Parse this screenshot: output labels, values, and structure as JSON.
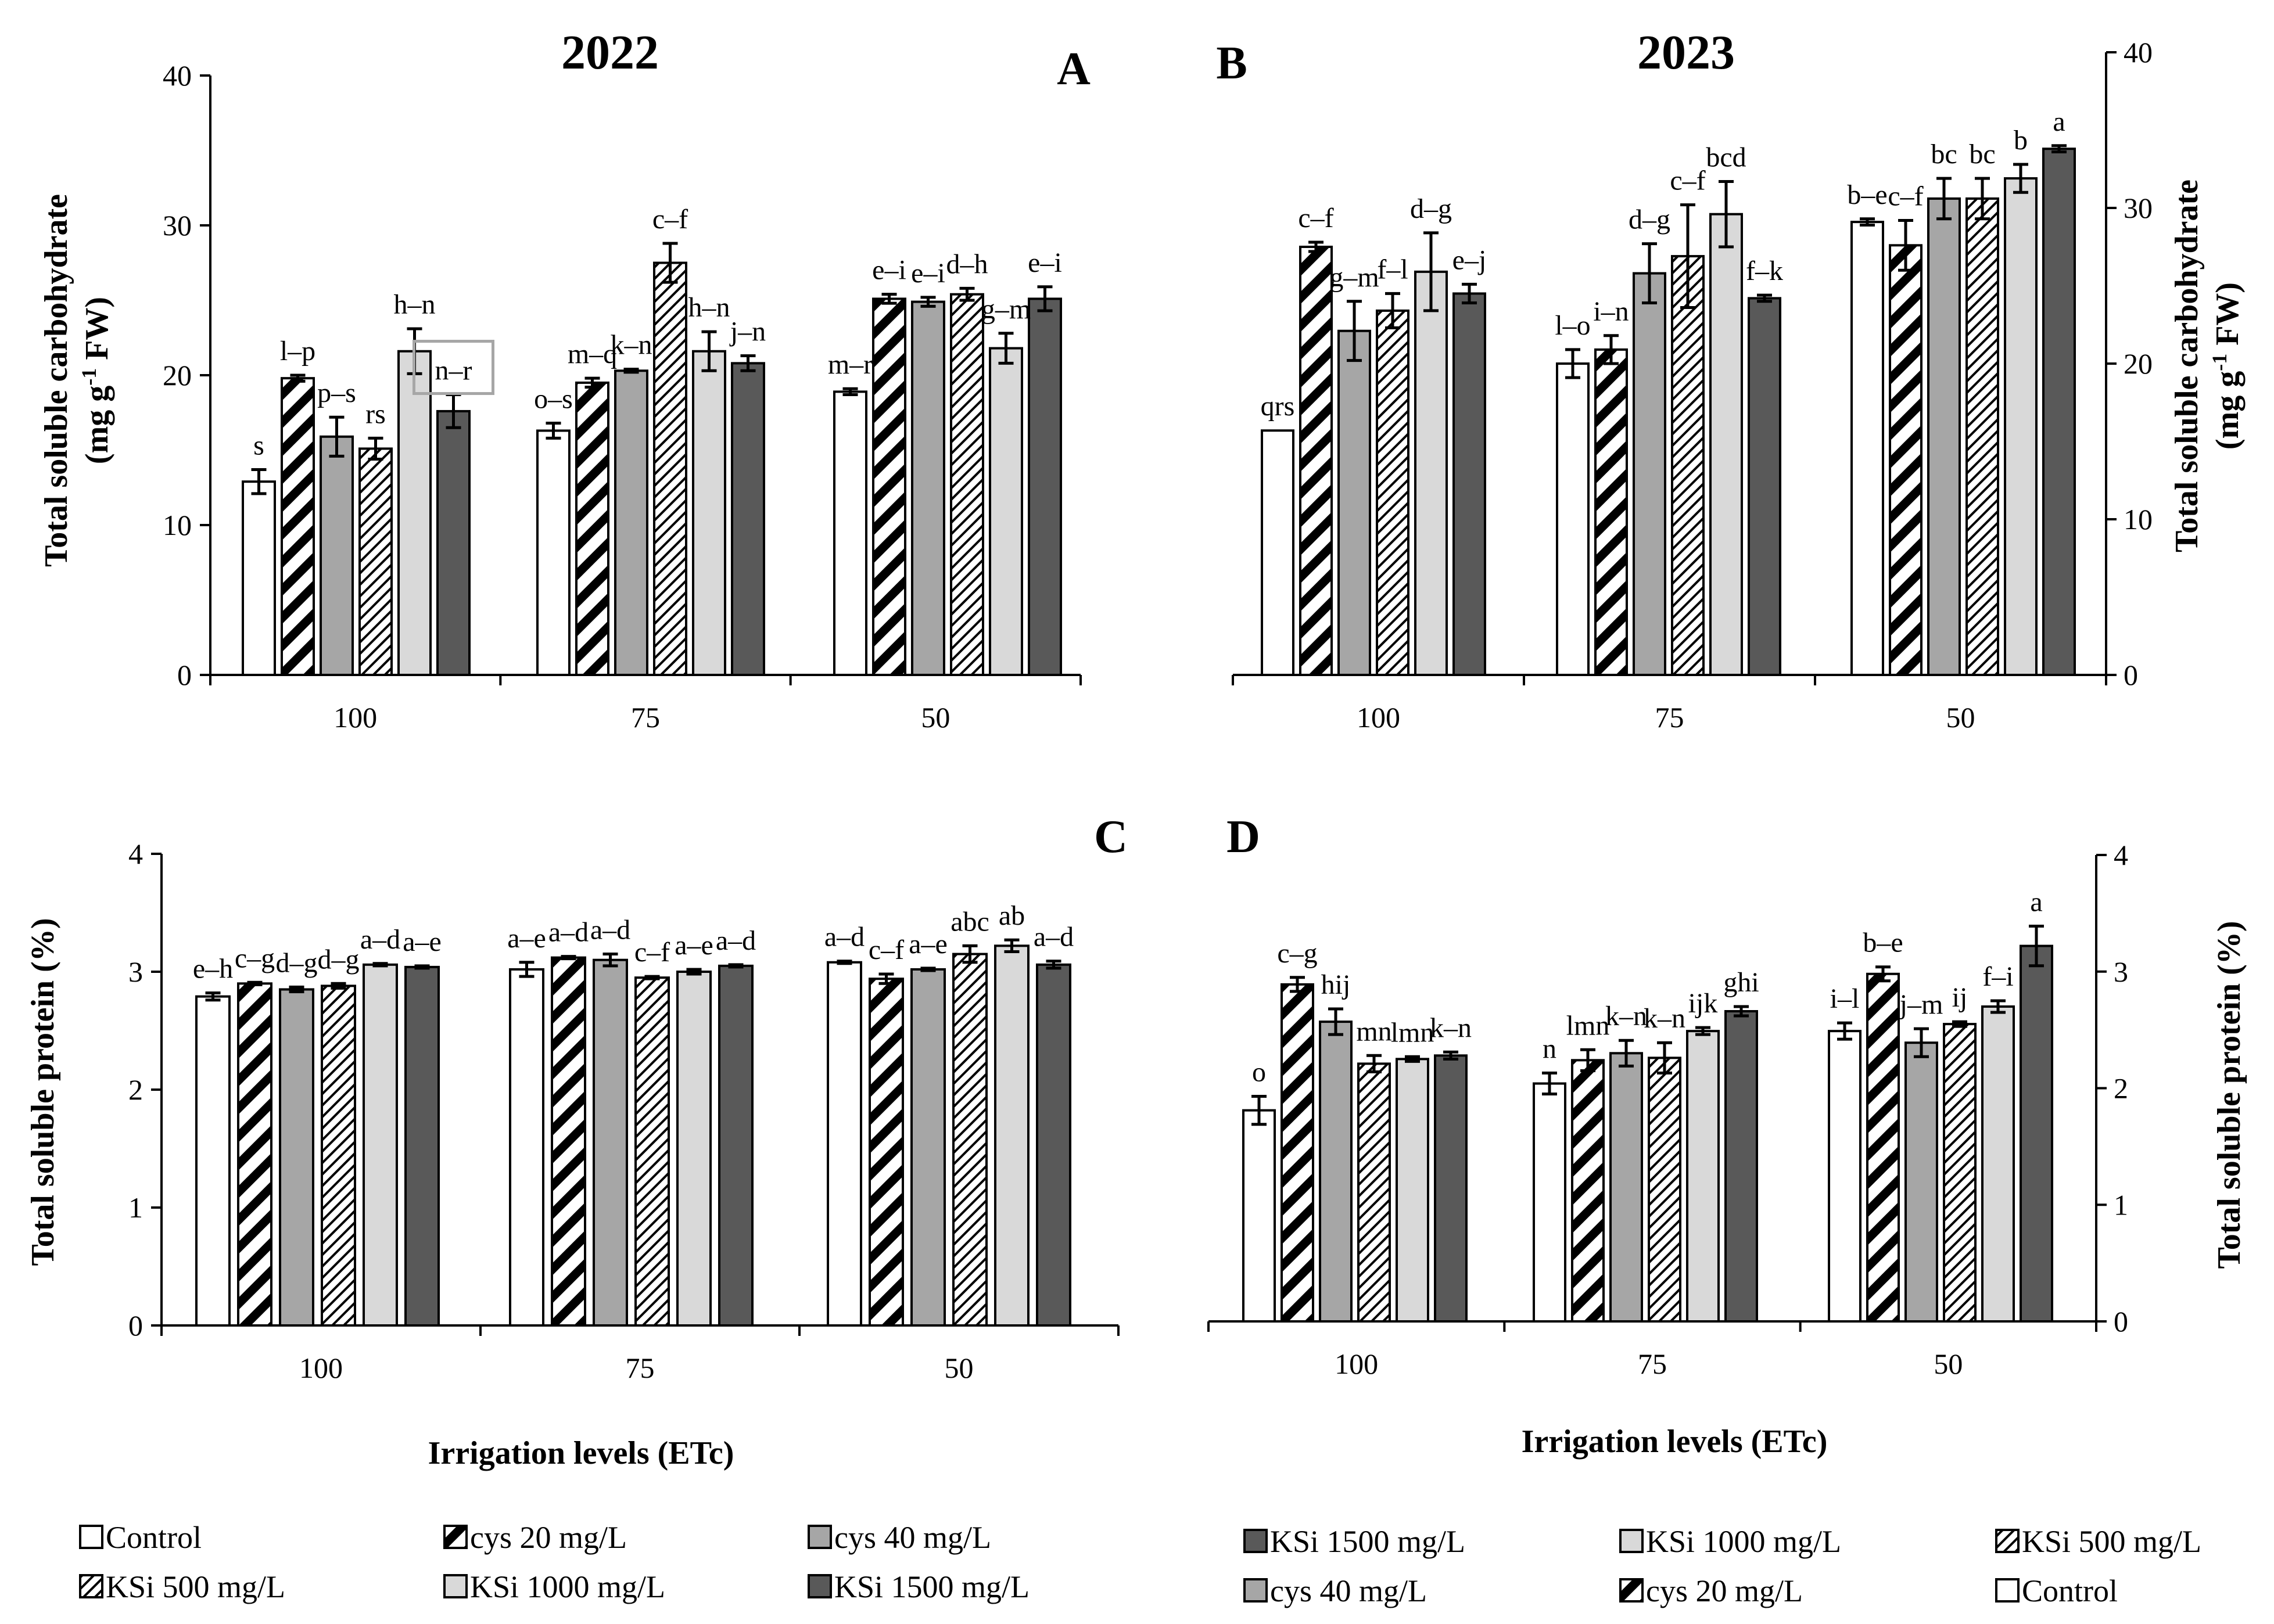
{
  "chart_data": [
    {
      "panel": "A",
      "title": "2022",
      "type": "bar",
      "ylabel_line1": "Total soluble carbohydrate",
      "ylabel_line2_pre": "(mg g",
      "ylabel_line2_sup": "-1",
      "ylabel_line2_post": " FW)",
      "xlabel": "",
      "ylim": [
        0,
        40
      ],
      "yticks": [
        "0",
        "10",
        "20",
        "30",
        "40"
      ],
      "categories": [
        "100",
        "75",
        "50"
      ],
      "series": [
        {
          "name": "Control",
          "values": [
            12.9,
            16.3,
            18.9
          ],
          "errors": [
            0.8,
            0.5,
            0.2
          ],
          "letters": [
            "s",
            "o–s",
            "m–r"
          ]
        },
        {
          "name": "cys 20 mg/L",
          "values": [
            19.8,
            19.5,
            25.1
          ],
          "errors": [
            0.2,
            0.3,
            0.3
          ],
          "letters": [
            "l–p",
            "m–q",
            "e–i"
          ]
        },
        {
          "name": "cys 40 mg/L",
          "values": [
            15.9,
            20.3,
            24.9
          ],
          "errors": [
            1.3,
            0.1,
            0.3
          ],
          "letters": [
            "p–s",
            "k–n",
            "e–i"
          ]
        },
        {
          "name": "KSi 500 mg/L",
          "values": [
            15.1,
            27.5,
            25.4
          ],
          "errors": [
            0.7,
            1.3,
            0.4
          ],
          "letters": [
            "rs",
            "c–f",
            "d–h"
          ]
        },
        {
          "name": "KSi 1000 mg/L",
          "values": [
            21.6,
            21.6,
            21.8
          ],
          "errors": [
            1.5,
            1.3,
            1.0
          ],
          "letters": [
            "h–n",
            "h–n",
            "g–m"
          ]
        },
        {
          "name": "KSi 1500 mg/L",
          "values": [
            17.6,
            20.8,
            25.1
          ],
          "errors": [
            1.1,
            0.5,
            0.8
          ],
          "letters": [
            "n–r",
            "j–n",
            "e–i"
          ]
        }
      ],
      "boxed_label": "n–r"
    },
    {
      "panel": "B",
      "title": "2023",
      "type": "bar",
      "ylabel_line1": "Total soluble carbohydrate",
      "ylabel_line2_pre": "(mg g",
      "ylabel_line2_sup": "-1",
      "ylabel_line2_post": " FW)",
      "xlabel": "",
      "ylim": [
        0,
        40
      ],
      "yticks": [
        "0",
        "10",
        "20",
        "30",
        "40"
      ],
      "categories": [
        "100",
        "75",
        "50"
      ],
      "series": [
        {
          "name": "Control",
          "values": [
            15.7,
            20.0,
            29.1
          ],
          "errors": [
            0.0,
            0.9,
            0.2
          ],
          "letters": [
            "qrs",
            "l–o",
            "b–e"
          ]
        },
        {
          "name": "cys 20 mg/L",
          "values": [
            27.5,
            20.9,
            27.6
          ],
          "errors": [
            0.3,
            0.9,
            1.6
          ],
          "letters": [
            "c–f",
            "i–n",
            "c–f"
          ]
        },
        {
          "name": "cys 40 mg/L",
          "values": [
            22.1,
            25.8,
            30.6
          ],
          "errors": [
            1.9,
            1.9,
            1.3
          ],
          "letters": [
            "g–m",
            "d–g",
            "bc"
          ]
        },
        {
          "name": "KSi 500 mg/L",
          "values": [
            23.4,
            26.9,
            30.6
          ],
          "errors": [
            1.1,
            3.3,
            1.3
          ],
          "letters": [
            "f–l",
            "c–f",
            "bc"
          ]
        },
        {
          "name": "KSi 1000 mg/L",
          "values": [
            25.9,
            29.6,
            31.9
          ],
          "errors": [
            2.5,
            2.1,
            0.9
          ],
          "letters": [
            "d–g",
            "bcd",
            "b"
          ]
        },
        {
          "name": "KSi 1500 mg/L",
          "values": [
            24.5,
            24.2,
            33.8
          ],
          "errors": [
            0.6,
            0.2,
            0.2
          ],
          "letters": [
            "e–j",
            "f–k",
            "a"
          ]
        }
      ]
    },
    {
      "panel": "C",
      "title": "",
      "type": "bar",
      "ylabel": "Total soluble protein (%)",
      "xlabel": "Irrigation levels (ETc)",
      "ylim": [
        0,
        4
      ],
      "yticks": [
        "0",
        "1",
        "2",
        "3",
        "4"
      ],
      "categories": [
        "100",
        "75",
        "50"
      ],
      "series": [
        {
          "name": "Control",
          "values": [
            2.79,
            3.02,
            3.08
          ],
          "errors": [
            0.03,
            0.06,
            0.01
          ],
          "letters": [
            "e–h",
            "a–e",
            "a–d"
          ]
        },
        {
          "name": "cys 20 mg/L",
          "values": [
            2.9,
            3.12,
            2.94
          ],
          "errors": [
            0.01,
            0.01,
            0.04
          ],
          "letters": [
            "c–g",
            "a–d",
            "c–f"
          ]
        },
        {
          "name": "cys 40 mg/L",
          "values": [
            2.85,
            3.1,
            3.02
          ],
          "errors": [
            0.02,
            0.05,
            0.01
          ],
          "letters": [
            "d–g",
            "a–d",
            "a–e"
          ]
        },
        {
          "name": "KSi 500 mg/L",
          "values": [
            2.88,
            2.95,
            3.15
          ],
          "errors": [
            0.02,
            0.01,
            0.07
          ],
          "letters": [
            "d–g",
            "c–f",
            "abc"
          ]
        },
        {
          "name": "KSi 1000 mg/L",
          "values": [
            3.06,
            3.0,
            3.22
          ],
          "errors": [
            0.01,
            0.02,
            0.05
          ],
          "letters": [
            "a–d",
            "a–e",
            "ab"
          ]
        },
        {
          "name": "KSi 1500 mg/L",
          "values": [
            3.04,
            3.05,
            3.06
          ],
          "errors": [
            0.01,
            0.01,
            0.03
          ],
          "letters": [
            "a–e",
            "a–d",
            "a–d"
          ]
        }
      ]
    },
    {
      "panel": "D",
      "title": "",
      "type": "bar",
      "ylabel": "Total soluble protein (%)",
      "xlabel": "Irrigation levels (ETc)",
      "ylim": [
        0,
        4
      ],
      "yticks": [
        "0",
        "1",
        "2",
        "3",
        "4"
      ],
      "categories": [
        "100",
        "75",
        "50"
      ],
      "series": [
        {
          "name": "Control",
          "values": [
            1.81,
            2.04,
            2.49
          ],
          "errors": [
            0.12,
            0.09,
            0.07
          ],
          "letters": [
            "o",
            "n",
            "i–l"
          ]
        },
        {
          "name": "cys 20 mg/L",
          "values": [
            2.89,
            2.24,
            2.98
          ],
          "errors": [
            0.06,
            0.09,
            0.06
          ],
          "letters": [
            "c–g",
            "lmn",
            "b–e"
          ]
        },
        {
          "name": "cys 40 mg/L",
          "values": [
            2.57,
            2.3,
            2.39
          ],
          "errors": [
            0.11,
            0.11,
            0.12
          ],
          "letters": [
            "hij",
            "k–n",
            "j–m"
          ]
        },
        {
          "name": "KSi 500 mg/L",
          "values": [
            2.21,
            2.26,
            2.55
          ],
          "errors": [
            0.07,
            0.13,
            0.02
          ],
          "letters": [
            "mn",
            "k–n",
            "ij"
          ]
        },
        {
          "name": "KSi 1000 mg/L",
          "values": [
            2.25,
            2.49,
            2.7
          ],
          "errors": [
            0.02,
            0.03,
            0.05
          ],
          "letters": [
            "lmn",
            "ijk",
            "f–i"
          ]
        },
        {
          "name": "KSi 1500 mg/L",
          "values": [
            2.28,
            2.66,
            3.22
          ],
          "errors": [
            0.03,
            0.04,
            0.17
          ],
          "letters": [
            "k–n",
            "ghi",
            "a"
          ]
        }
      ]
    }
  ],
  "legend_left": [
    [
      "Control",
      "cys 20 mg/L",
      "cys 40 mg/L"
    ],
    [
      "KSi 500 mg/L",
      "KSi 1000 mg/L",
      "KSi 1500 mg/L"
    ]
  ],
  "legend_right": [
    [
      "KSi 1500 mg/L",
      "KSi 1000 mg/L",
      "KSi 500 mg/L"
    ],
    [
      "cys 40 mg/L",
      "cys 20 mg/L",
      "Control"
    ]
  ],
  "styles": {
    "Control": {
      "fill": "#ffffff",
      "pattern": "none"
    },
    "cys 20 mg/L": {
      "fill": "#ffffff",
      "pattern": "wide-stripe"
    },
    "cys 40 mg/L": {
      "fill": "#a6a6a6",
      "pattern": "none"
    },
    "KSi 500 mg/L": {
      "fill": "#ffffff",
      "pattern": "narrow-stripe"
    },
    "KSi 1000 mg/L": {
      "fill": "#d9d9d9",
      "pattern": "none"
    },
    "KSi 1500 mg/L": {
      "fill": "#595959",
      "pattern": "none"
    }
  }
}
